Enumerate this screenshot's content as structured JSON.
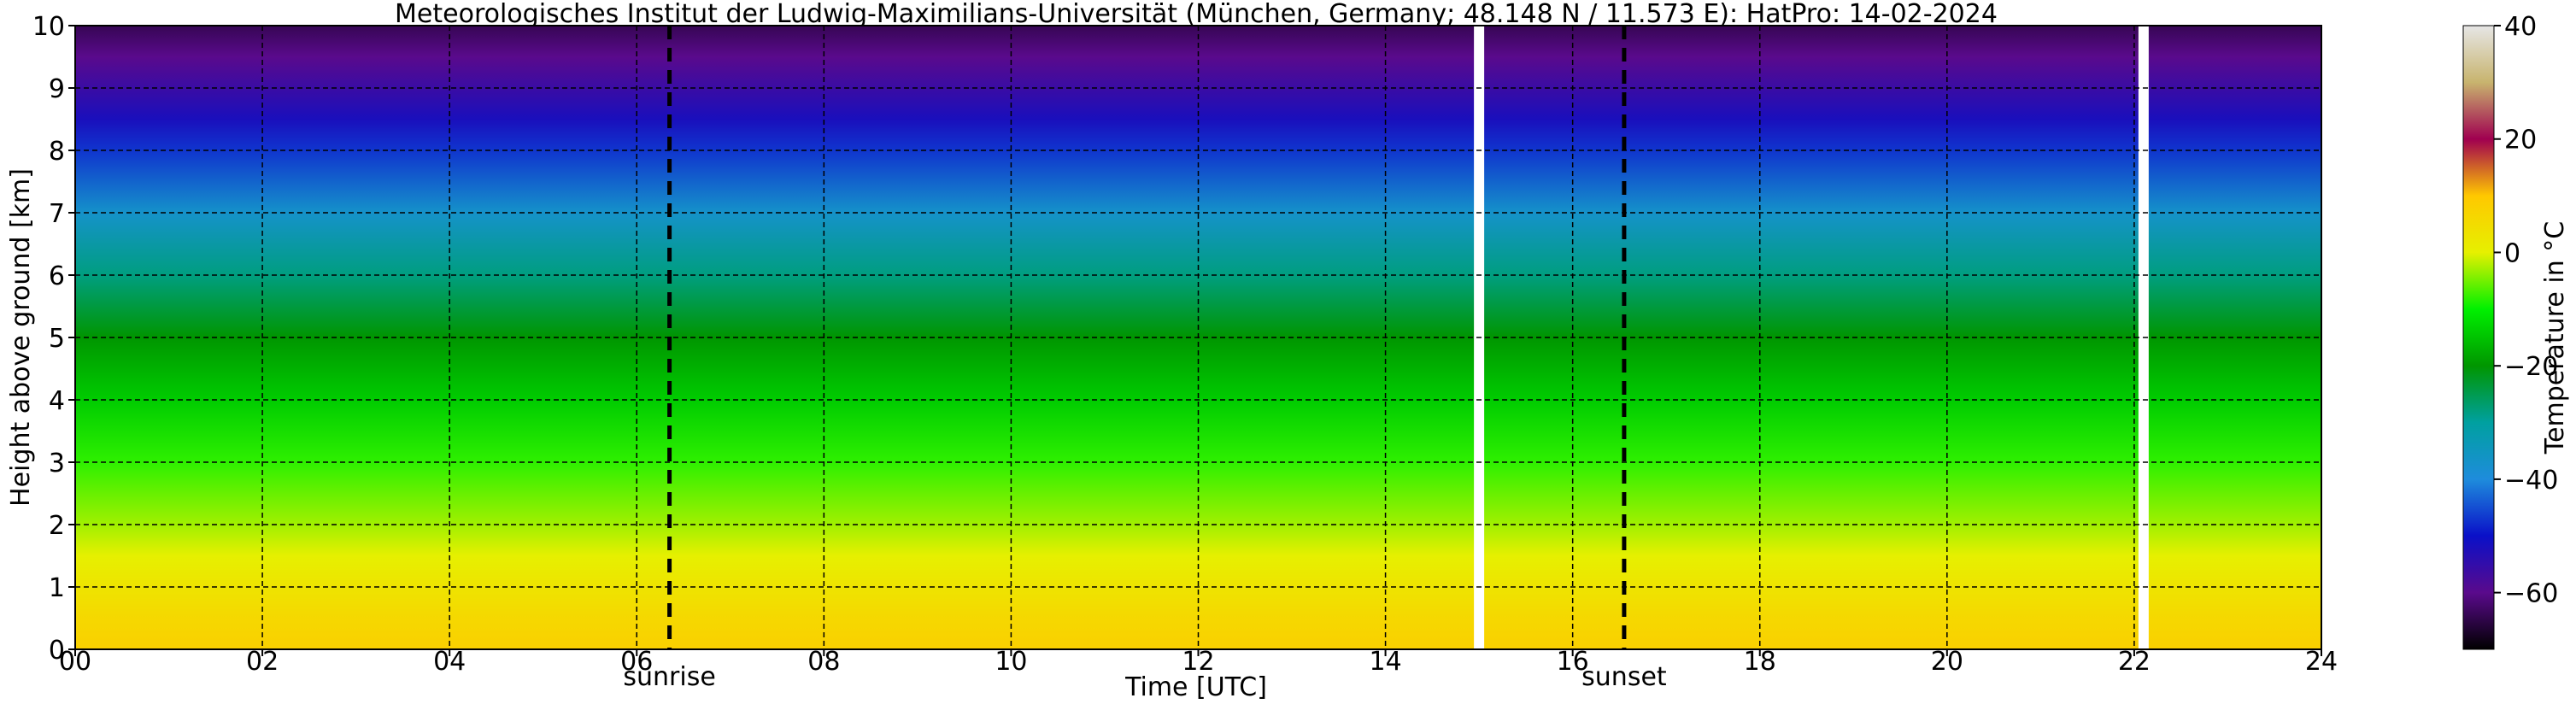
{
  "chart_data": {
    "type": "heatmap",
    "title": "Meteorologisches Institut der Ludwig-Maximilians-Universität (München, Germany; 48.148 N / 11.573 E):    HatPro: 14-02-2024",
    "xlabel": "Time [UTC]",
    "ylabel": "Height above ground [km]",
    "xlim": [
      0,
      24
    ],
    "ylim": [
      0,
      10
    ],
    "x_ticks": [
      "00",
      "02",
      "04",
      "06",
      "08",
      "10",
      "12",
      "14",
      "16",
      "18",
      "20",
      "22",
      "24"
    ],
    "y_ticks": [
      "0",
      "1",
      "2",
      "3",
      "4",
      "5",
      "6",
      "7",
      "8",
      "9",
      "10"
    ],
    "grid": true,
    "colorbar": {
      "label": "Temperature in °C",
      "range": [
        -70,
        40
      ],
      "ticks": [
        "40",
        "20",
        "0",
        "−20",
        "−40",
        "−60"
      ],
      "colors": [
        "#000000",
        "#5a0a8c",
        "#0a10c8",
        "#1e8cdc",
        "#00a0a0",
        "#009600",
        "#00f000",
        "#e6f000",
        "#ffc800",
        "#a00050",
        "#c8b46e",
        "#e6e6e6"
      ]
    },
    "temperature_profile": {
      "height_km": [
        0,
        0.5,
        1,
        1.5,
        2,
        3,
        4,
        5,
        6,
        7,
        8,
        8.5,
        9,
        9.5,
        10
      ],
      "temperature_c": [
        8,
        6,
        3,
        0,
        -3,
        -8,
        -14,
        -20,
        -28,
        -37,
        -47,
        -52,
        -56,
        -60,
        -64
      ]
    },
    "gaps_utc": [
      15.0,
      22.1
    ],
    "sun_events": [
      {
        "label": "sunrise",
        "time_utc": 6.35
      },
      {
        "label": "sunset",
        "time_utc": 16.55
      }
    ]
  }
}
